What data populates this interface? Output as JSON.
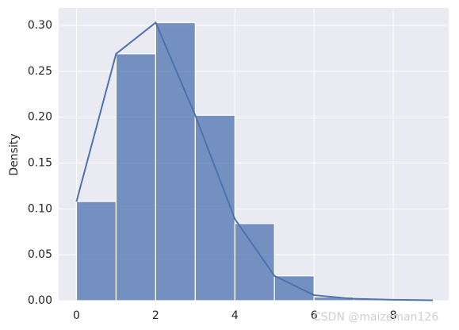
{
  "chart_data": {
    "type": "histogram",
    "ylabel": "Density",
    "bins": [
      0,
      1,
      2,
      3,
      4,
      5,
      6,
      7,
      8,
      9
    ],
    "values": [
      0.108,
      0.269,
      0.303,
      0.202,
      0.084,
      0.027,
      0.004,
      0.0017,
      0.0006
    ],
    "color": "#4c72b0",
    "line": {
      "x": [
        0,
        1,
        2,
        3,
        4,
        5,
        6,
        7,
        8,
        9
      ],
      "values": [
        0.108,
        0.269,
        0.303,
        0.202,
        0.089,
        0.027,
        0.006,
        0.002,
        0.001,
        0.0004
      ],
      "color": "#4c72b0"
    },
    "xlim": [
      -0.45,
      9.4
    ],
    "ylim": [
      0,
      0.319
    ],
    "xticks": [
      0,
      2,
      4,
      6,
      8
    ],
    "yticks": [
      {
        "value": 0,
        "label": "0.00"
      },
      {
        "value": 0.05,
        "label": "0.05"
      },
      {
        "value": 0.1,
        "label": "0.10"
      },
      {
        "value": 0.15,
        "label": "0.15"
      },
      {
        "value": 0.2,
        "label": "0.20"
      },
      {
        "value": 0.25,
        "label": "0.25"
      },
      {
        "value": 0.3,
        "label": "0.30"
      }
    ],
    "grid": true,
    "watermark": "CSDN @maizeman126"
  }
}
